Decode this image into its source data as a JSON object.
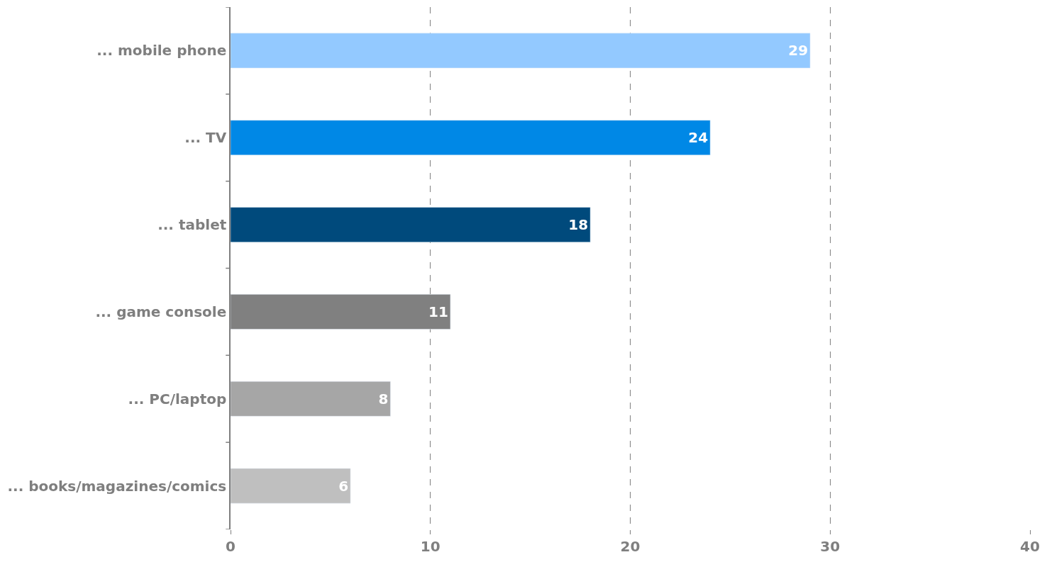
{
  "chart_data": {
    "type": "bar",
    "orientation": "horizontal",
    "categories": [
      "... mobile phone",
      "... TV",
      "... tablet",
      "... game console",
      "... PC/laptop",
      "... books/magazines/comics"
    ],
    "values": [
      29,
      24,
      18,
      11,
      8,
      6
    ],
    "colors": [
      "#93c9ff",
      "#0088e6",
      "#004a7c",
      "#808080",
      "#a6a6a6",
      "#bfbfbf"
    ],
    "xlim": [
      0,
      40
    ],
    "xticks": [
      0,
      10,
      20,
      30,
      40
    ],
    "grid": "x",
    "data_labels": true,
    "legend": false
  }
}
